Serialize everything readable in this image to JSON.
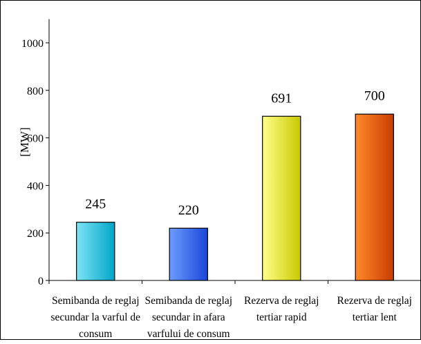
{
  "chart_data": {
    "type": "bar",
    "ylabel": "[MW]",
    "ylim": [
      0,
      1100
    ],
    "yticks": [
      0,
      200,
      400,
      600,
      800,
      1000
    ],
    "grid": false,
    "categories": [
      [
        "Semibanda de reglaj",
        "secundar la varful de",
        "consum"
      ],
      [
        "Semibanda de reglaj",
        "secundar in afara",
        "varfului de consum"
      ],
      [
        "Rezerva de reglaj",
        "tertiar rapid"
      ],
      [
        "Rezerva de reglaj",
        "tertiar lent"
      ]
    ],
    "values": [
      245,
      220,
      691,
      700
    ],
    "data_labels": [
      "245",
      "220",
      "691",
      "700"
    ],
    "colors": [
      [
        "#7fe3f5",
        "#00a6c8"
      ],
      [
        "#6c9cff",
        "#1a46d8"
      ],
      [
        "#ffff8a",
        "#c9c900"
      ],
      [
        "#ff8a2a",
        "#c83c00"
      ]
    ]
  }
}
